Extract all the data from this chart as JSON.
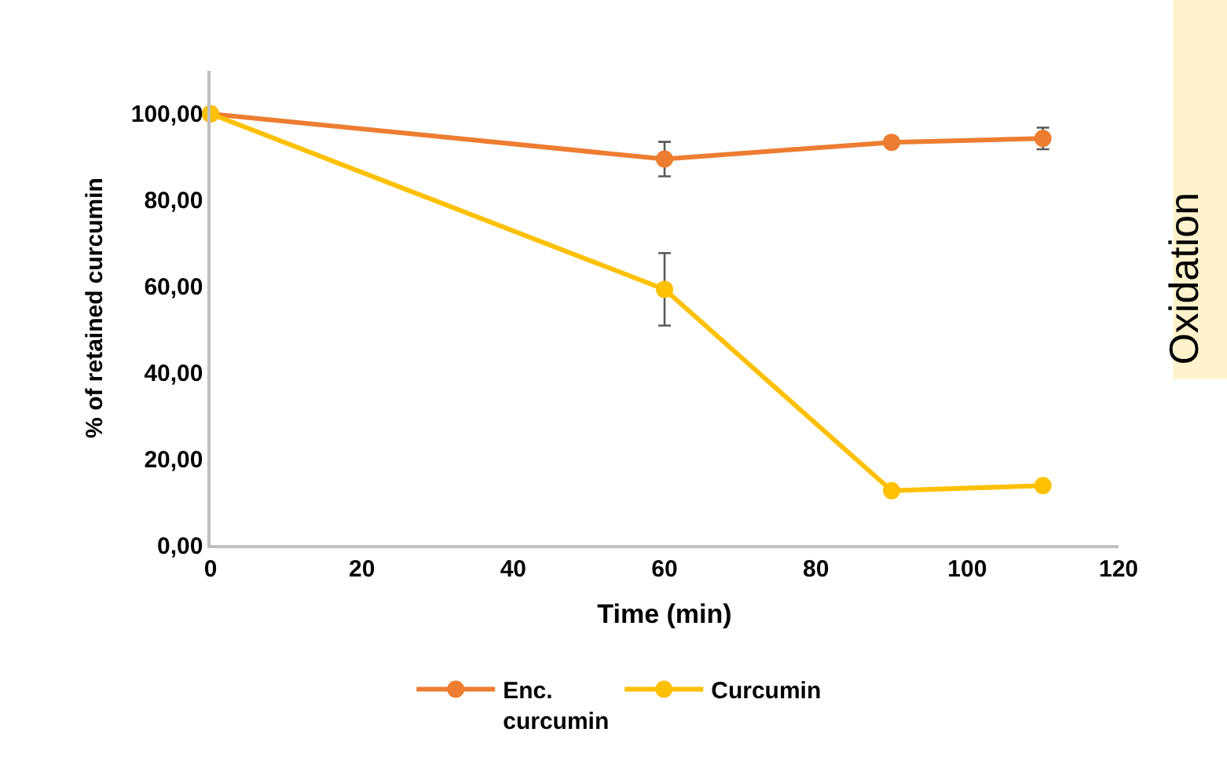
{
  "chart_data": {
    "type": "line",
    "xlabel": "Time (min)",
    "ylabel": "% of retained curcumin",
    "x": [
      0,
      60,
      90,
      110
    ],
    "series": [
      {
        "name": "Enc. curcumin",
        "color": "#ed7d31",
        "values": [
          100,
          89.5,
          93.4,
          94.3
        ],
        "errors": [
          null,
          4,
          null,
          2.5
        ]
      },
      {
        "name": "Curcumin",
        "color": "#ffc000",
        "values": [
          100,
          59.3,
          12.6,
          13.8
        ],
        "errors": [
          null,
          8.4,
          null,
          null
        ]
      }
    ],
    "xlim": [
      0,
      120
    ],
    "xticks": [
      0,
      20,
      40,
      60,
      80,
      100,
      120
    ],
    "ylim": [
      0,
      110
    ],
    "yticks": [
      {
        "value": 0,
        "label": "0,00"
      },
      {
        "value": 20,
        "label": "20,00"
      },
      {
        "value": 40,
        "label": "40,00"
      },
      {
        "value": 60,
        "label": "60,00"
      },
      {
        "value": 80,
        "label": "80,00"
      },
      {
        "value": 100,
        "label": "100,00"
      }
    ],
    "annotations": [
      "Oxidation"
    ],
    "marker": "circle",
    "line_style": "solid",
    "legend": "bottom"
  }
}
